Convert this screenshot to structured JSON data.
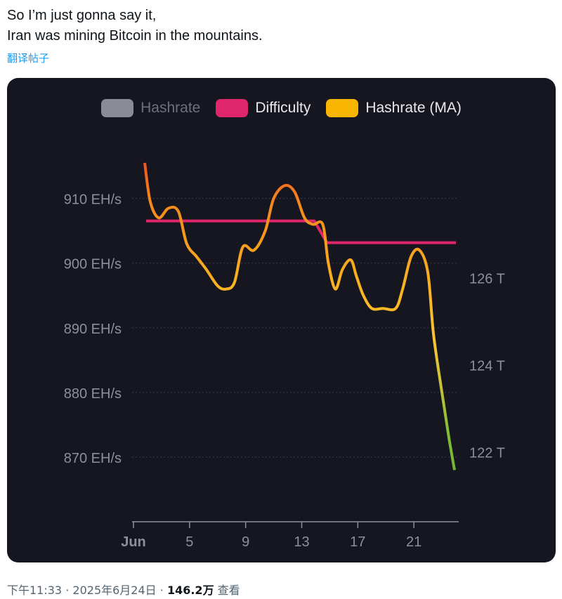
{
  "tweet": {
    "line1": "So I’m just gonna say it,",
    "line2": "Iran was mining Bitcoin in the mountains.",
    "translate": "翻译帖子",
    "time": "下午11:33",
    "sep": "·",
    "date": "2025年6月24日",
    "views_count": "146.2万",
    "views_label": "查看"
  },
  "legend": [
    {
      "label": "Hashrate",
      "color": "#8a8b94",
      "disabled": true
    },
    {
      "label": "Difficulty",
      "color": "#e0266b",
      "disabled": false
    },
    {
      "label": "Hashrate (MA)",
      "color": "#f7b500",
      "disabled": false
    }
  ],
  "chart_data": {
    "type": "line",
    "title": "",
    "x_ticks": [
      {
        "label": "Jun",
        "day": 1
      },
      {
        "label": "5",
        "day": 5
      },
      {
        "label": "9",
        "day": 9
      },
      {
        "label": "13",
        "day": 13
      },
      {
        "label": "17",
        "day": 17
      },
      {
        "label": "21",
        "day": 21
      }
    ],
    "xlim": [
      0.9,
      24.2
    ],
    "y_left": {
      "ticks": [
        {
          "label": "910 EH/s",
          "value": 910
        },
        {
          "label": "900 EH/s",
          "value": 900
        },
        {
          "label": "890 EH/s",
          "value": 890
        },
        {
          "label": "880 EH/s",
          "value": 880
        },
        {
          "label": "870 EH/s",
          "value": 870
        }
      ],
      "ylim": [
        860,
        918
      ]
    },
    "y_right": {
      "ticks": [
        {
          "label": "126 T",
          "value": 126
        },
        {
          "label": "124 T",
          "value": 124
        },
        {
          "label": "122 T",
          "value": 122
        }
      ],
      "ylim": [
        120.4,
        129.0
      ]
    },
    "grid": true,
    "legend_position": "top-center",
    "series": [
      {
        "name": "Difficulty",
        "axis": "right",
        "color": "#e0266b",
        "points": [
          [
            1.9,
            127.3
          ],
          [
            13.9,
            127.3
          ],
          [
            14.8,
            126.8
          ],
          [
            24.0,
            126.8
          ]
        ]
      },
      {
        "name": "Hashrate (MA)",
        "axis": "left",
        "color_gradient": [
          "#f26a1f",
          "#f7a21c",
          "#fbc02a",
          "#f2c230",
          "#7dbb37"
        ],
        "points": [
          [
            1.8,
            915.5
          ],
          [
            2.2,
            909.5
          ],
          [
            2.8,
            907
          ],
          [
            3.5,
            908.5
          ],
          [
            4.2,
            908
          ],
          [
            4.8,
            903
          ],
          [
            5.5,
            901
          ],
          [
            6.2,
            899
          ],
          [
            7.0,
            896.5
          ],
          [
            7.6,
            896
          ],
          [
            8.2,
            897
          ],
          [
            8.8,
            902.5
          ],
          [
            9.6,
            902
          ],
          [
            10.4,
            905
          ],
          [
            11.0,
            910
          ],
          [
            11.8,
            912
          ],
          [
            12.5,
            911
          ],
          [
            13.2,
            907
          ],
          [
            13.8,
            906
          ],
          [
            14.5,
            906
          ],
          [
            14.9,
            900
          ],
          [
            15.4,
            896
          ],
          [
            15.9,
            899
          ],
          [
            16.5,
            900.5
          ],
          [
            16.9,
            898
          ],
          [
            17.4,
            895
          ],
          [
            18.0,
            893
          ],
          [
            18.8,
            893
          ],
          [
            19.7,
            893
          ],
          [
            20.2,
            896
          ],
          [
            20.8,
            901
          ],
          [
            21.4,
            902
          ],
          [
            22.0,
            898.5
          ],
          [
            22.4,
            889
          ],
          [
            23.0,
            880
          ],
          [
            23.5,
            873
          ],
          [
            23.9,
            868
          ]
        ]
      }
    ]
  }
}
